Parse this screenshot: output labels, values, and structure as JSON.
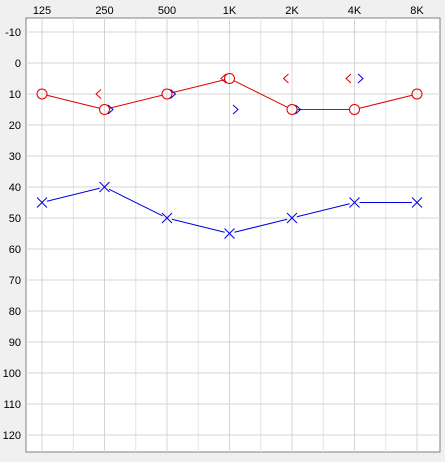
{
  "chart_data": {
    "type": "line",
    "title": "",
    "x_ticks": [
      "125",
      "250",
      "500",
      "1K",
      "2K",
      "4K",
      "8K"
    ],
    "y_ticks": [
      "-10",
      "0",
      "10",
      "20",
      "30",
      "40",
      "50",
      "60",
      "70",
      "80",
      "90",
      "100",
      "110",
      "120"
    ],
    "ylim": [
      -15,
      125
    ],
    "y_inverted": true,
    "grid": true,
    "legend": "none",
    "series": [
      {
        "symbol": "circle",
        "color": "#e00000",
        "connected": true,
        "points": [
          {
            "x": "125",
            "y": 10
          },
          {
            "x": "250",
            "y": 15
          },
          {
            "x": "500",
            "y": 10
          },
          {
            "x": "1K",
            "y": 5
          },
          {
            "x": "2K",
            "y": 15
          },
          {
            "x": "4K",
            "y": 15
          },
          {
            "x": "8K",
            "y": 10
          }
        ]
      },
      {
        "symbol": "cross",
        "color": "#0000e0",
        "connected": true,
        "points": [
          {
            "x": "125",
            "y": 45
          },
          {
            "x": "250",
            "y": 40
          },
          {
            "x": "500",
            "y": 50
          },
          {
            "x": "1K",
            "y": 55
          },
          {
            "x": "2K",
            "y": 50
          },
          {
            "x": "4K",
            "y": 45
          },
          {
            "x": "8K",
            "y": 45
          }
        ]
      },
      {
        "symbol": "left-bracket",
        "color": "#e00000",
        "connected": false,
        "points": [
          {
            "x": "250",
            "y": 10
          },
          {
            "x": "1K",
            "y": 5
          },
          {
            "x": "2K",
            "y": 5
          },
          {
            "x": "4K",
            "y": 5
          }
        ]
      },
      {
        "symbol": "right-bracket",
        "color": "#0000e0",
        "connected": false,
        "points": [
          {
            "x": "250",
            "y": 15
          },
          {
            "x": "500",
            "y": 10
          },
          {
            "x": "1K",
            "y": 15
          },
          {
            "x": "2K",
            "y": 15
          },
          {
            "x": "4K",
            "y": 5
          }
        ]
      }
    ]
  }
}
